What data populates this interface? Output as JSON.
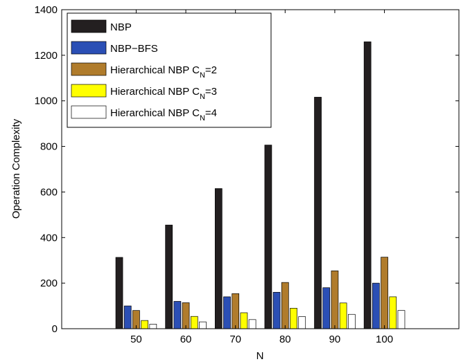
{
  "chart_data": {
    "type": "bar",
    "xlabel": "N",
    "ylabel": "Operation Complexity",
    "ylim": [
      0,
      1400
    ],
    "yticks": [
      0,
      200,
      400,
      600,
      800,
      1000,
      1200,
      1400
    ],
    "categories": [
      "50",
      "60",
      "70",
      "80",
      "90",
      "100"
    ],
    "legend_position": "top-left",
    "series": [
      {
        "name": "NBP",
        "legend_main": "NBP",
        "legend_sub": "",
        "legend_tail": "",
        "color": "#231f20",
        "values": [
          313,
          455,
          615,
          806,
          1016,
          1259
        ]
      },
      {
        "name": "NBP-BFS",
        "legend_main": "NBP−BFS",
        "legend_sub": "",
        "legend_tail": "",
        "color": "#2b4fb5",
        "values": [
          100,
          120,
          140,
          160,
          180,
          200
        ]
      },
      {
        "name": "Hierarchical NBP C_N=2",
        "legend_main": "Hierarchical NBP C",
        "legend_sub": "N",
        "legend_tail": "=2",
        "color": "#b07c2c",
        "values": [
          80,
          114,
          154,
          203,
          254,
          314
        ]
      },
      {
        "name": "Hierarchical NBP C_N=3",
        "legend_main": "Hierarchical NBP C",
        "legend_sub": "N",
        "legend_tail": "=3",
        "color": "#ffff00",
        "values": [
          36,
          54,
          70,
          90,
          113,
          140
        ]
      },
      {
        "name": "Hierarchical NBP C_N=4",
        "legend_main": "Hierarchical NBP C",
        "legend_sub": "N",
        "legend_tail": "=4",
        "color": "#ffffff",
        "values": [
          20,
          30,
          40,
          53,
          63,
          80
        ]
      }
    ]
  }
}
